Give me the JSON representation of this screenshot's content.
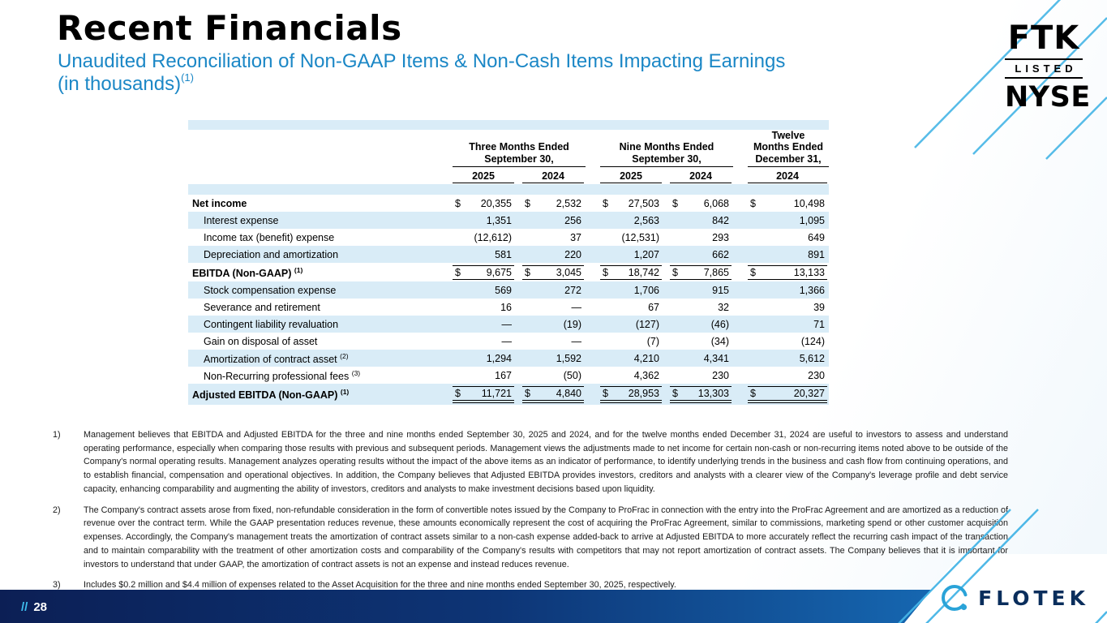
{
  "header": {
    "title": "Recent Financials",
    "subtitle_line1": "Unaudited Reconciliation of Non-GAAP Items & Non-Cash Items Impacting Earnings",
    "subtitle_line2": "(in thousands)",
    "subtitle_sup": "(1)"
  },
  "logos": {
    "ftk": "FTK",
    "listed": "LISTED",
    "nyse": "NYSE",
    "flotek": "FLOTEK"
  },
  "footer": {
    "slashes": "//",
    "page_number": "28"
  },
  "table": {
    "col_groups": [
      {
        "lines": [
          "Three Months Ended",
          "September 30,"
        ],
        "years": [
          "2025",
          "2024"
        ]
      },
      {
        "lines": [
          "Nine Months Ended",
          "September 30,"
        ],
        "years": [
          "2025",
          "2024"
        ]
      },
      {
        "lines": [
          "Twelve",
          "Months Ended",
          "December 31,"
        ],
        "years": [
          "2024"
        ]
      }
    ],
    "rows": [
      {
        "label": "Net income",
        "sup": "",
        "indent": false,
        "bold": true,
        "dollar": true,
        "rule": "",
        "shade": false,
        "values": [
          "20,355",
          "2,532",
          "27,503",
          "6,068",
          "10,498"
        ]
      },
      {
        "label": "Interest expense",
        "sup": "",
        "indent": true,
        "bold": false,
        "dollar": false,
        "rule": "",
        "shade": true,
        "values": [
          "1,351",
          "256",
          "2,563",
          "842",
          "1,095"
        ]
      },
      {
        "label": "Income tax (benefit) expense",
        "sup": "",
        "indent": true,
        "bold": false,
        "dollar": false,
        "rule": "",
        "shade": false,
        "values": [
          "(12,612)",
          "37",
          "(12,531)",
          "293",
          "649"
        ]
      },
      {
        "label": "Depreciation and amortization",
        "sup": "",
        "indent": true,
        "bold": false,
        "dollar": false,
        "rule": "",
        "shade": true,
        "values": [
          "581",
          "220",
          "1,207",
          "662",
          "891"
        ]
      },
      {
        "label": "EBITDA (Non-GAAP)",
        "sup": "(1)",
        "indent": false,
        "bold": true,
        "dollar": true,
        "rule": "single",
        "shade": false,
        "values": [
          "9,675",
          "3,045",
          "18,742",
          "7,865",
          "13,133"
        ]
      },
      {
        "label": "Stock compensation expense",
        "sup": "",
        "indent": true,
        "bold": false,
        "dollar": false,
        "rule": "",
        "shade": true,
        "values": [
          "569",
          "272",
          "1,706",
          "915",
          "1,366"
        ]
      },
      {
        "label": "Severance and retirement",
        "sup": "",
        "indent": true,
        "bold": false,
        "dollar": false,
        "rule": "",
        "shade": false,
        "values": [
          "16",
          "—",
          "67",
          "32",
          "39"
        ]
      },
      {
        "label": "Contingent liability revaluation",
        "sup": "",
        "indent": true,
        "bold": false,
        "dollar": false,
        "rule": "",
        "shade": true,
        "values": [
          "—",
          "(19)",
          "(127)",
          "(46)",
          "71"
        ]
      },
      {
        "label": "Gain on disposal of asset",
        "sup": "",
        "indent": true,
        "bold": false,
        "dollar": false,
        "rule": "",
        "shade": false,
        "values": [
          "—",
          "—",
          "(7)",
          "(34)",
          "(124)"
        ]
      },
      {
        "label": "Amortization of contract asset",
        "sup": "(2)",
        "indent": true,
        "bold": false,
        "dollar": false,
        "rule": "",
        "shade": true,
        "values": [
          "1,294",
          "1,592",
          "4,210",
          "4,341",
          "5,612"
        ]
      },
      {
        "label": "Non-Recurring professional fees",
        "sup": "(3)",
        "indent": true,
        "bold": false,
        "dollar": false,
        "rule": "",
        "shade": false,
        "values": [
          "167",
          "(50)",
          "4,362",
          "230",
          "230"
        ]
      },
      {
        "label": "Adjusted EBITDA (Non-GAAP)",
        "sup": "(1)",
        "indent": false,
        "bold": true,
        "dollar": true,
        "rule": "double",
        "shade": true,
        "values": [
          "11,721",
          "4,840",
          "28,953",
          "13,303",
          "20,327"
        ]
      }
    ]
  },
  "footnotes": [
    {
      "num": "1)",
      "text": "Management believes that EBITDA and Adjusted EBITDA for the three and nine months ended September 30, 2025 and 2024, and for the twelve months ended December 31, 2024 are useful to investors to assess and understand operating performance, especially when comparing those results with previous and subsequent periods.  Management views the adjustments made to net income for certain non-cash or non-recurring items noted above to be outside of the Company's normal operating results.  Management analyzes operating results without the impact of the above items as an indicator of performance, to identify underlying trends in the business and cash flow from continuing operations, and to establish financial, compensation and operational objectives. In addition, the Company believes that Adjusted EBITDA provides investors, creditors and analysts with a clearer view of the Company's leverage profile and debt service capacity, enhancing comparability and augmenting the ability of investors, creditors and analysts to make investment decisions based upon liquidity."
    },
    {
      "num": "2)",
      "text": "The Company's contract assets arose from fixed, non-refundable consideration in the form of convertible notes issued by the Company to ProFrac in connection with the entry into the ProFrac Agreement and are amortized as a reduction of revenue over the contract term. While the GAAP presentation reduces revenue, these amounts economically represent the cost of acquiring the ProFrac Agreement, similar to commissions, marketing spend or other customer acquisition expenses. Accordingly, the Company's management treats the amortization of contract assets similar to a non-cash expense added-back to arrive at Adjusted EBITDA to more accurately reflect the recurring cash impact of the transaction and to maintain comparability with the treatment of other amortization costs and comparability of the Company's results with competitors that may not report amortization of contract assets. The Company believes that it is important for investors to understand that under GAAP, the amortization of contract assets is not an expense and instead reduces revenue."
    },
    {
      "num": "3)",
      "text": "Includes $0.2 million and $4.4 million of expenses related to the Asset Acquisition for the three and nine months ended September 30, 2025, respectively."
    }
  ]
}
